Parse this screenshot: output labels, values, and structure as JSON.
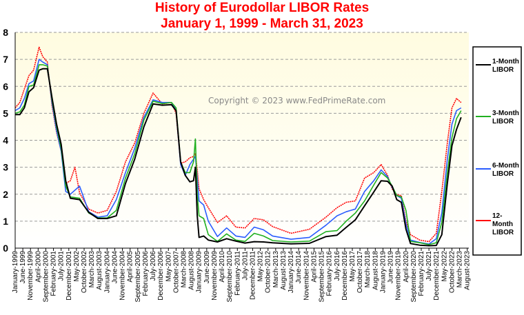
{
  "header": {
    "title": "History of Eurodollar LIBOR Rates",
    "subtitle": "January 1, 1999  -  March 31, 2023"
  },
  "watermark": "Copyright © 2023 www.FedPrimeRate.com",
  "colors": {
    "one_month": "#000000",
    "three_month": "#20b020",
    "six_month": "#2a5cff",
    "twelve_month": "#ff0000",
    "plot_bg_top": "#fffce0",
    "plot_bg_bottom": "#ffffff",
    "title": "#ff0000"
  },
  "chart_data": {
    "type": "line",
    "title": "History of Eurodollar LIBOR Rates",
    "subtitle": "January 1, 1999  -  March 31, 2023",
    "xlabel": "",
    "ylabel": "",
    "xlim": [
      1999.0,
      2023.67
    ],
    "ylim": [
      0,
      8
    ],
    "yticks": [
      0,
      1,
      2,
      3,
      4,
      5,
      6,
      7,
      8
    ],
    "grid": true,
    "legend_position": "right",
    "x_tick_labels": [
      "January-1999",
      "June-1999",
      "November-1999",
      "April-2000",
      "September-2000",
      "February-2001",
      "July-2001",
      "December-2001",
      "May-2002",
      "October-2002",
      "March-2003",
      "August-2003",
      "January-2004",
      "June-2004",
      "November-2004",
      "April-2005",
      "September-2005",
      "February-2006",
      "July-2006",
      "December-2006",
      "May-2007",
      "October-2007",
      "March-2008",
      "August-2008",
      "January-2009",
      "June-2009",
      "November-2009",
      "April-2010",
      "September-2010",
      "February-2011",
      "July-2011",
      "December-2011",
      "May-2012",
      "October-2012",
      "March-2013",
      "August-2013",
      "January-2014",
      "June-2014",
      "November-2014",
      "April-2015",
      "September-2015",
      "February-2016",
      "July-2016",
      "December-2016",
      "May-2017",
      "October-2017",
      "March-2018",
      "August-2018",
      "January-2019",
      "June-2019",
      "November-2019",
      "April-2020",
      "September-2020",
      "February-2021",
      "July-2021",
      "December-2021",
      "May-2022",
      "October-2022",
      "March-2023",
      "August-2023"
    ],
    "series": [
      {
        "name": "1-Month LIBOR",
        "color": "#000000",
        "x": [
          1999.0,
          1999.25,
          1999.5,
          1999.75,
          2000.0,
          2000.3,
          2000.5,
          2000.75,
          2001.0,
          2001.25,
          2001.5,
          2001.75,
          2002.0,
          2002.5,
          2003.0,
          2003.5,
          2004.0,
          2004.5,
          2005.0,
          2005.5,
          2006.0,
          2006.5,
          2007.0,
          2007.5,
          2007.75,
          2008.0,
          2008.25,
          2008.5,
          2008.7,
          2008.8,
          2008.9,
          2009.0,
          2009.25,
          2009.5,
          2010.0,
          2010.5,
          2011.0,
          2011.5,
          2012.0,
          2012.5,
          2013.0,
          2014.0,
          2015.0,
          2015.9,
          2016.5,
          2017.0,
          2017.5,
          2018.0,
          2018.5,
          2018.9,
          2019.25,
          2019.5,
          2019.75,
          2020.0,
          2020.25,
          2020.5,
          2021.0,
          2021.5,
          2021.9,
          2022.2,
          2022.5,
          2022.75,
          2023.0,
          2023.25
        ],
        "values": [
          4.95,
          4.95,
          5.2,
          5.8,
          5.95,
          6.6,
          6.65,
          6.65,
          5.6,
          4.6,
          3.85,
          2.5,
          1.85,
          1.8,
          1.33,
          1.1,
          1.1,
          1.2,
          2.4,
          3.3,
          4.5,
          5.35,
          5.3,
          5.32,
          5.1,
          3.2,
          2.7,
          2.46,
          2.5,
          3.0,
          1.2,
          0.4,
          0.45,
          0.3,
          0.23,
          0.35,
          0.26,
          0.19,
          0.24,
          0.23,
          0.2,
          0.16,
          0.18,
          0.43,
          0.48,
          0.77,
          1.05,
          1.57,
          2.08,
          2.5,
          2.48,
          2.3,
          1.8,
          1.7,
          0.7,
          0.17,
          0.11,
          0.09,
          0.1,
          0.5,
          2.4,
          3.8,
          4.4,
          4.85
        ]
      },
      {
        "name": "3-Month LIBOR",
        "color": "#20b020",
        "x": [
          1999.0,
          1999.25,
          1999.5,
          1999.75,
          2000.0,
          2000.3,
          2000.5,
          2000.75,
          2001.0,
          2001.25,
          2001.5,
          2001.75,
          2002.0,
          2002.5,
          2003.0,
          2003.5,
          2004.0,
          2004.5,
          2005.0,
          2005.5,
          2006.0,
          2006.5,
          2007.0,
          2007.5,
          2007.75,
          2008.0,
          2008.25,
          2008.5,
          2008.7,
          2008.8,
          2008.9,
          2009.0,
          2009.25,
          2009.5,
          2010.0,
          2010.5,
          2011.0,
          2011.5,
          2012.0,
          2012.5,
          2013.0,
          2014.0,
          2015.0,
          2015.9,
          2016.5,
          2017.0,
          2017.5,
          2018.0,
          2018.5,
          2018.9,
          2019.25,
          2019.5,
          2019.75,
          2020.0,
          2020.25,
          2020.5,
          2021.0,
          2021.5,
          2021.9,
          2022.2,
          2022.5,
          2022.75,
          2023.0,
          2023.25
        ],
        "values": [
          5.0,
          5.05,
          5.3,
          6.0,
          6.05,
          6.8,
          6.8,
          6.75,
          5.5,
          4.5,
          3.7,
          2.3,
          1.9,
          1.85,
          1.3,
          1.12,
          1.12,
          1.4,
          2.6,
          3.5,
          4.75,
          5.45,
          5.36,
          5.4,
          5.2,
          3.2,
          2.8,
          2.8,
          3.2,
          4.05,
          2.0,
          1.2,
          1.1,
          0.5,
          0.25,
          0.53,
          0.3,
          0.25,
          0.55,
          0.45,
          0.28,
          0.23,
          0.26,
          0.61,
          0.65,
          1.0,
          1.3,
          1.75,
          2.34,
          2.8,
          2.6,
          2.3,
          1.95,
          1.9,
          1.4,
          0.25,
          0.2,
          0.13,
          0.2,
          0.96,
          2.8,
          4.1,
          4.8,
          5.1
        ]
      },
      {
        "name": "6-Month LIBOR",
        "color": "#2a5cff",
        "x": [
          1999.0,
          1999.25,
          1999.5,
          1999.75,
          2000.0,
          2000.3,
          2000.5,
          2000.75,
          2001.0,
          2001.25,
          2001.5,
          2001.75,
          2002.0,
          2002.5,
          2003.0,
          2003.5,
          2004.0,
          2004.5,
          2005.0,
          2005.5,
          2006.0,
          2006.5,
          2007.0,
          2007.5,
          2007.75,
          2008.0,
          2008.25,
          2008.5,
          2008.7,
          2008.8,
          2008.9,
          2009.0,
          2009.25,
          2009.5,
          2010.0,
          2010.5,
          2011.0,
          2011.5,
          2012.0,
          2012.5,
          2013.0,
          2014.0,
          2015.0,
          2015.9,
          2016.5,
          2017.0,
          2017.5,
          2018.0,
          2018.5,
          2018.9,
          2019.25,
          2019.5,
          2019.75,
          2020.0,
          2020.25,
          2020.5,
          2021.0,
          2021.5,
          2021.9,
          2022.2,
          2022.5,
          2022.75,
          2023.0,
          2023.25
        ],
        "values": [
          5.1,
          5.2,
          5.55,
          6.1,
          6.2,
          7.0,
          6.9,
          6.8,
          5.4,
          4.35,
          3.6,
          2.1,
          2.0,
          2.3,
          1.35,
          1.15,
          1.2,
          1.8,
          2.8,
          3.7,
          4.85,
          5.5,
          5.4,
          5.4,
          5.1,
          3.1,
          2.7,
          3.1,
          3.3,
          3.4,
          2.6,
          1.75,
          1.6,
          1.0,
          0.43,
          0.75,
          0.45,
          0.4,
          0.78,
          0.68,
          0.45,
          0.33,
          0.4,
          0.85,
          1.2,
          1.35,
          1.45,
          2.1,
          2.5,
          2.9,
          2.65,
          2.25,
          1.95,
          1.85,
          0.9,
          0.3,
          0.21,
          0.15,
          0.35,
          1.3,
          3.3,
          4.6,
          5.1,
          5.2
        ]
      },
      {
        "name": "12-Month LIBOR",
        "color": "#ff0000",
        "x": [
          1999.0,
          1999.25,
          1999.5,
          1999.75,
          2000.0,
          2000.3,
          2000.5,
          2000.75,
          2001.0,
          2001.25,
          2001.5,
          2001.75,
          2002.0,
          2002.25,
          2002.5,
          2003.0,
          2003.5,
          2004.0,
          2004.5,
          2005.0,
          2005.5,
          2006.0,
          2006.5,
          2007.0,
          2007.5,
          2007.75,
          2008.0,
          2008.25,
          2008.5,
          2008.7,
          2008.8,
          2008.9,
          2009.0,
          2009.25,
          2009.5,
          2010.0,
          2010.5,
          2011.0,
          2011.5,
          2012.0,
          2012.5,
          2013.0,
          2014.0,
          2015.0,
          2015.9,
          2016.5,
          2017.0,
          2017.5,
          2018.0,
          2018.5,
          2018.9,
          2019.25,
          2019.5,
          2019.75,
          2020.0,
          2020.25,
          2020.5,
          2021.0,
          2021.5,
          2021.9,
          2022.2,
          2022.5,
          2022.75,
          2023.0,
          2023.25
        ],
        "values": [
          5.2,
          5.4,
          5.9,
          6.4,
          6.6,
          7.45,
          7.1,
          6.9,
          5.3,
          4.3,
          3.6,
          2.4,
          2.5,
          3.0,
          2.05,
          1.45,
          1.3,
          1.4,
          2.1,
          3.2,
          3.9,
          5.0,
          5.75,
          5.35,
          5.4,
          5.0,
          3.15,
          3.2,
          3.35,
          3.4,
          3.5,
          2.9,
          2.2,
          1.8,
          1.5,
          0.95,
          1.2,
          0.78,
          0.75,
          1.1,
          1.05,
          0.8,
          0.55,
          0.7,
          1.15,
          1.5,
          1.7,
          1.75,
          2.6,
          2.8,
          3.1,
          2.7,
          2.2,
          1.98,
          1.95,
          1.0,
          0.5,
          0.3,
          0.24,
          0.55,
          2.1,
          3.9,
          5.2,
          5.55,
          5.4
        ]
      }
    ]
  }
}
